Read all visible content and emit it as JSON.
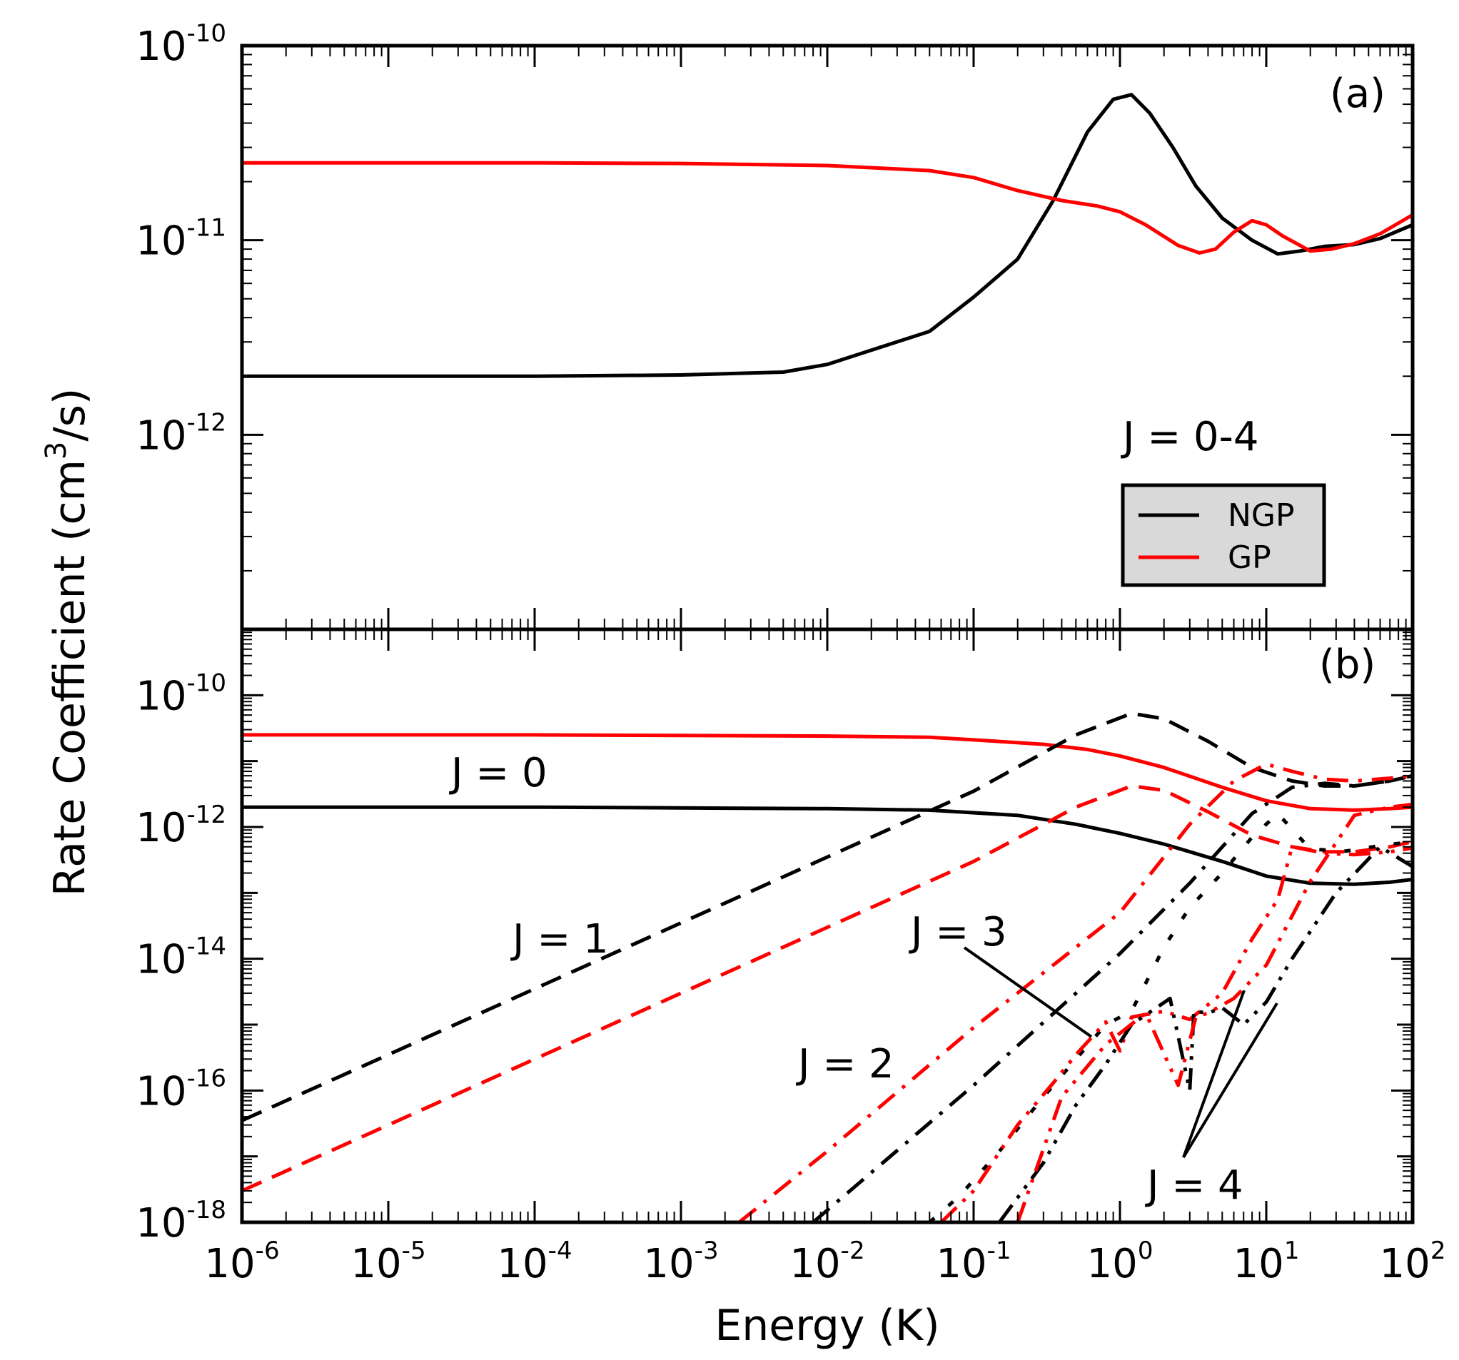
{
  "figure": {
    "xlabel": "Energy (K)",
    "ylabel_main": "Rate Coefficient (cm",
    "ylabel_sup": "3",
    "ylabel_tail": "/s)"
  },
  "colors": {
    "ngp": "#000000",
    "gp": "#ff0000"
  },
  "chart_data": [
    {
      "panel": "a",
      "type": "line",
      "panel_label": "(a)",
      "annotation": "J = 0-4",
      "xscale": "log",
      "yscale": "log",
      "xlim": [
        1e-06,
        100
      ],
      "ylim": [
        1e-13,
        1e-10
      ],
      "x_ticks": [
        {
          "base": "10",
          "exp": "-6"
        },
        {
          "base": "10",
          "exp": "-5"
        },
        {
          "base": "10",
          "exp": "-4"
        },
        {
          "base": "10",
          "exp": "-3"
        },
        {
          "base": "10",
          "exp": "-2"
        },
        {
          "base": "10",
          "exp": "-1"
        },
        {
          "base": "10",
          "exp": "0"
        },
        {
          "base": "10",
          "exp": "1"
        },
        {
          "base": "10",
          "exp": "2"
        }
      ],
      "y_ticks": [
        {
          "value": 1e-10,
          "base": "10",
          "exp": "-10"
        },
        {
          "value": 1e-11,
          "base": "10",
          "exp": "-11"
        },
        {
          "value": 1e-12,
          "base": "10",
          "exp": "-12"
        }
      ],
      "legend": {
        "position": "lower-right",
        "entries": [
          {
            "label": "NGP",
            "color": "#000000"
          },
          {
            "label": "GP",
            "color": "#ff0000"
          }
        ]
      },
      "series": [
        {
          "name": "NGP",
          "color": "#000000",
          "style": "solid",
          "x": [
            1e-06,
            1e-05,
            0.0001,
            0.001,
            0.005,
            0.01,
            0.05,
            0.1,
            0.2,
            0.35,
            0.6,
            0.9,
            1.2,
            1.6,
            2.3,
            3.3,
            5,
            8,
            12,
            17,
            25,
            40,
            60,
            100
          ],
          "y": [
            2e-12,
            2e-12,
            2e-12,
            2.03e-12,
            2.1e-12,
            2.3e-12,
            3.4e-12,
            5.1e-12,
            8e-12,
            1.6e-11,
            3.6e-11,
            5.3e-11,
            5.6e-11,
            4.5e-11,
            3e-11,
            1.9e-11,
            1.3e-11,
            1e-11,
            8.5e-12,
            8.8e-12,
            9.3e-12,
            9.5e-12,
            1.02e-11,
            1.2e-11
          ]
        },
        {
          "name": "GP",
          "color": "#ff0000",
          "style": "solid",
          "x": [
            1e-06,
            1e-05,
            0.0001,
            0.001,
            0.01,
            0.05,
            0.1,
            0.2,
            0.4,
            0.7,
            1.0,
            1.5,
            2.5,
            3.5,
            4.5,
            6,
            8,
            10,
            13,
            20,
            28,
            40,
            60,
            100
          ],
          "y": [
            2.5e-11,
            2.5e-11,
            2.5e-11,
            2.48e-11,
            2.42e-11,
            2.28e-11,
            2.1e-11,
            1.8e-11,
            1.6e-11,
            1.5e-11,
            1.4e-11,
            1.2e-11,
            9.4e-12,
            8.6e-12,
            9e-12,
            1.1e-11,
            1.26e-11,
            1.2e-11,
            1.05e-11,
            8.8e-12,
            9e-12,
            9.6e-12,
            1.08e-11,
            1.35e-11
          ]
        }
      ]
    },
    {
      "panel": "b",
      "type": "line",
      "panel_label": "(b)",
      "xscale": "log",
      "yscale": "log",
      "xlim": [
        1e-06,
        100
      ],
      "ylim": [
        1e-18,
        1e-09
      ],
      "x_ticks": [
        {
          "base": "10",
          "exp": "-6"
        },
        {
          "base": "10",
          "exp": "-5"
        },
        {
          "base": "10",
          "exp": "-4"
        },
        {
          "base": "10",
          "exp": "-3"
        },
        {
          "base": "10",
          "exp": "-2"
        },
        {
          "base": "10",
          "exp": "-1"
        },
        {
          "base": "10",
          "exp": "0"
        },
        {
          "base": "10",
          "exp": "1"
        },
        {
          "base": "10",
          "exp": "2"
        }
      ],
      "y_ticks": [
        {
          "value": 1e-10,
          "base": "10",
          "exp": "-10"
        },
        {
          "value": 1e-12,
          "base": "10",
          "exp": "-12"
        },
        {
          "value": 1e-14,
          "base": "10",
          "exp": "-14"
        },
        {
          "value": 1e-16,
          "base": "10",
          "exp": "-16"
        },
        {
          "value": 1e-18,
          "base": "10",
          "exp": "-18"
        }
      ],
      "annotations": [
        {
          "text": "J = 0"
        },
        {
          "text": "J = 1"
        },
        {
          "text": "J = 2"
        },
        {
          "text": "J = 3"
        },
        {
          "text": "J = 4"
        }
      ],
      "series": [
        {
          "name": "J=0 NGP",
          "color": "#000000",
          "style": "solid",
          "x": [
            1e-06,
            0.0001,
            0.01,
            0.05,
            0.2,
            0.5,
            1,
            2,
            5,
            10,
            20,
            40,
            70,
            100
          ],
          "y": [
            2e-12,
            2e-12,
            1.9e-12,
            1.8e-12,
            1.5e-12,
            1.1e-12,
            8e-13,
            5.5e-13,
            3e-13,
            1.8e-13,
            1.4e-13,
            1.35e-13,
            1.45e-13,
            1.6e-13
          ]
        },
        {
          "name": "J=0 GP",
          "color": "#ff0000",
          "style": "solid",
          "x": [
            1e-06,
            0.0001,
            0.01,
            0.05,
            0.1,
            0.3,
            0.6,
            1,
            2,
            5,
            10,
            20,
            40,
            70,
            100
          ],
          "y": [
            2.5e-11,
            2.5e-11,
            2.4e-11,
            2.3e-11,
            2.1e-11,
            1.8e-11,
            1.5e-11,
            1.2e-11,
            8e-12,
            4e-12,
            2.5e-12,
            1.9e-12,
            1.8e-12,
            1.9e-12,
            2e-12
          ]
        },
        {
          "name": "J=1 NGP",
          "color": "#000000",
          "style": "dash",
          "x": [
            1e-06,
            0.0001,
            0.01,
            0.1,
            0.5,
            1.2,
            2,
            4,
            8,
            15,
            25,
            40,
            70,
            100
          ],
          "y": [
            3.5e-17,
            3.5e-15,
            3.5e-13,
            3.5e-12,
            2.5e-11,
            5.3e-11,
            4.4e-11,
            2e-11,
            8e-12,
            5e-12,
            4.2e-12,
            4.2e-12,
            5e-12,
            6e-12
          ]
        },
        {
          "name": "J=1 GP",
          "color": "#ff0000",
          "style": "dash",
          "x": [
            1e-06,
            0.0001,
            0.01,
            0.1,
            0.5,
            1.2,
            2,
            4,
            8,
            15,
            25,
            40,
            70,
            100
          ],
          "y": [
            3e-18,
            3e-16,
            3e-14,
            3e-13,
            2e-12,
            4.2e-12,
            3.6e-12,
            1.7e-12,
            7.5e-13,
            5e-13,
            4.2e-13,
            4.2e-13,
            5e-13,
            6e-13
          ]
        },
        {
          "name": "J=2 GP",
          "color": "#ff0000",
          "style": "dashdot",
          "x": [
            0.0025,
            0.01,
            0.1,
            1,
            3,
            6,
            10,
            15,
            25,
            40,
            70,
            100
          ],
          "y": [
            1e-18,
            1.2e-17,
            9e-16,
            5e-14,
            1.1e-12,
            5e-12,
            9e-12,
            7e-12,
            5.3e-12,
            5e-12,
            5.5e-12,
            6e-12
          ]
        },
        {
          "name": "J=2 NGP",
          "color": "#000000",
          "style": "dashdot",
          "x": [
            0.008,
            0.1,
            1,
            3,
            8,
            15,
            25,
            40,
            70,
            100
          ],
          "y": [
            1e-18,
            1.2e-16,
            1.2e-14,
            1.4e-13,
            1.6e-12,
            4e-12,
            4.6e-12,
            4.2e-12,
            5e-12,
            6e-12
          ]
        },
        {
          "name": "J=3 NGP",
          "color": "#000000",
          "style": "dot",
          "x": [
            0.05,
            0.08,
            0.15,
            0.3,
            0.5,
            0.8,
            1.2,
            2,
            3,
            5,
            8,
            12,
            20,
            35,
            60,
            100
          ],
          "y": [
            1e-18,
            2.5e-18,
            1.2e-17,
            8e-17,
            3e-16,
            1e-15,
            1.6e-15,
            1.5e-14,
            6e-14,
            2e-13,
            7e-13,
            1.6e-12,
            4.6e-13,
            4.3e-13,
            5.2e-13,
            6e-13
          ]
        },
        {
          "name": "J=3 GP",
          "color": "#ff0000",
          "style": "dashdotdot",
          "x": [
            0.06,
            0.1,
            0.2,
            0.35,
            0.5,
            0.8,
            1.0,
            1.2,
            2,
            3,
            5,
            8,
            12,
            15,
            25,
            40,
            70,
            100
          ],
          "y": [
            1e-18,
            3e-18,
            3e-17,
            1.3e-16,
            3.5e-16,
            1.1e-15,
            4e-16,
            1.3e-15,
            1.6e-15,
            1.2e-15,
            3e-15,
            2e-14,
            8e-14,
            5e-13,
            4e-13,
            3.8e-13,
            4.2e-13,
            4.8e-13
          ]
        },
        {
          "name": "J=4 NGP",
          "color": "#000000",
          "style": "dashdotdot",
          "x": [
            0.15,
            0.3,
            0.5,
            0.8,
            1.2,
            2.2,
            3,
            3.2,
            4,
            5,
            7,
            10,
            15,
            30,
            60,
            100
          ],
          "y": [
            1e-18,
            8e-18,
            6e-17,
            2.5e-16,
            1e-15,
            2.5e-15,
            1e-16,
            1.6e-15,
            1.5e-15,
            1.8e-15,
            1e-15,
            2.2e-15,
            1e-14,
            1e-13,
            5e-13,
            2.5e-13
          ]
        },
        {
          "name": "J=4 GP",
          "color": "#ff0000",
          "style": "dashdotdot",
          "x": [
            0.2,
            0.4,
            0.8,
            1.5,
            2.5,
            3.3,
            4,
            6,
            10,
            20,
            40,
            70,
            100
          ],
          "y": [
            1e-18,
            8e-17,
            5e-16,
            1.5e-15,
            1.2e-16,
            1.3e-15,
            1.5e-15,
            2.5e-15,
            8e-15,
            1.5e-13,
            1.5e-12,
            2e-12,
            2.2e-12
          ]
        }
      ]
    }
  ]
}
